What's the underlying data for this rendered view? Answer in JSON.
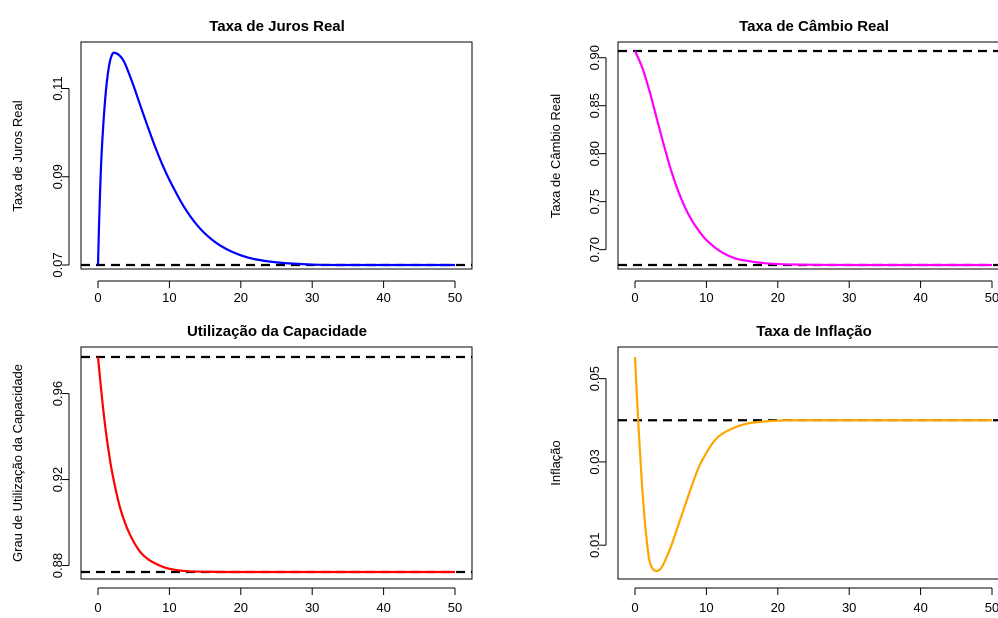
{
  "chart_data": [
    {
      "id": "juros",
      "type": "line",
      "title": "Taxa de Juros Real",
      "xlabel": "",
      "ylabel": "Taxa de Juros Real",
      "xlim": [
        0,
        50
      ],
      "ylim": [
        0.07,
        0.1185
      ],
      "xticks": [
        "0",
        "10",
        "20",
        "30",
        "40",
        "50"
      ],
      "yticks": [
        "0.07",
        "0.09",
        "0.11"
      ],
      "ytick_values": [
        0.07,
        0.09,
        0.11
      ],
      "xtick_values": [
        0,
        10,
        20,
        30,
        40,
        50
      ],
      "color": "#0000ff",
      "reference_lines": [
        0.07
      ],
      "series": [
        {
          "x": [
            0,
            0.2,
            0.5,
            1,
            1.5,
            2,
            2.5,
            3,
            3.5,
            4,
            5,
            6,
            7,
            8,
            9,
            10,
            12,
            14,
            16,
            18,
            20,
            22,
            25,
            30,
            35,
            40,
            45,
            50
          ],
          "values": [
            0.07,
            0.082,
            0.095,
            0.1075,
            0.1147,
            0.1178,
            0.118,
            0.1175,
            0.1165,
            0.1148,
            0.1105,
            0.1058,
            0.1012,
            0.0968,
            0.0928,
            0.0893,
            0.0833,
            0.0788,
            0.0757,
            0.0736,
            0.0722,
            0.0713,
            0.0706,
            0.0701,
            0.07,
            0.07,
            0.07,
            0.07
          ]
        }
      ]
    },
    {
      "id": "cambio",
      "type": "line",
      "title": "Taxa de Câmbio Real",
      "xlabel": "",
      "ylabel": "Taxa de Câmbio Real",
      "xlim": [
        0,
        50
      ],
      "ylim": [
        0.684,
        0.907
      ],
      "xticks": [
        "0",
        "10",
        "20",
        "30",
        "40",
        "50"
      ],
      "yticks": [
        "0.70",
        "0.75",
        "0.80",
        "0.85",
        "0.90"
      ],
      "ytick_values": [
        0.7,
        0.75,
        0.8,
        0.85,
        0.9
      ],
      "xtick_values": [
        0,
        10,
        20,
        30,
        40,
        50
      ],
      "color": "#ff00ff",
      "reference_lines": [
        0.907,
        0.684
      ],
      "series": [
        {
          "x": [
            0,
            1,
            2,
            3,
            4,
            5,
            6,
            7,
            8,
            9,
            10,
            12,
            14,
            16,
            18,
            20,
            22,
            25,
            30,
            35,
            40,
            45,
            50
          ],
          "values": [
            0.907,
            0.89,
            0.866,
            0.838,
            0.81,
            0.784,
            0.762,
            0.744,
            0.73,
            0.719,
            0.71,
            0.698,
            0.691,
            0.688,
            0.686,
            0.685,
            0.6845,
            0.6842,
            0.684,
            0.684,
            0.684,
            0.684,
            0.684
          ]
        }
      ]
    },
    {
      "id": "capacidade",
      "type": "line",
      "title": "Utilização da Capacidade",
      "xlabel": "",
      "ylabel": "Grau de Utilização da Capacidade",
      "xlim": [
        0,
        50
      ],
      "ylim": [
        0.877,
        0.977
      ],
      "xticks": [
        "0",
        "10",
        "20",
        "30",
        "40",
        "50"
      ],
      "yticks": [
        "0.88",
        "0.92",
        "0.96"
      ],
      "ytick_values": [
        0.88,
        0.92,
        0.96
      ],
      "xtick_values": [
        0,
        10,
        20,
        30,
        40,
        50
      ],
      "color": "#ff0000",
      "reference_lines": [
        0.977,
        0.877
      ],
      "series": [
        {
          "x": [
            0,
            0.5,
            1,
            1.5,
            2,
            3,
            4,
            5,
            6,
            7,
            8,
            9,
            10,
            12,
            14,
            16,
            18,
            20,
            25,
            30,
            35,
            40,
            45,
            50
          ],
          "values": [
            0.977,
            0.96,
            0.945,
            0.933,
            0.923,
            0.908,
            0.898,
            0.891,
            0.886,
            0.883,
            0.881,
            0.8795,
            0.8785,
            0.8775,
            0.8772,
            0.8771,
            0.877,
            0.877,
            0.877,
            0.877,
            0.877,
            0.877,
            0.877,
            0.877
          ]
        }
      ]
    },
    {
      "id": "inflacao",
      "type": "line",
      "title": "Taxa de Inflação",
      "xlabel": "",
      "ylabel": "Inflação",
      "xlim": [
        0,
        50
      ],
      "ylim": [
        0.0038,
        0.0552
      ],
      "xticks": [
        "0",
        "10",
        "20",
        "30",
        "40",
        "50"
      ],
      "yticks": [
        "0.01",
        "0.03",
        "0.05"
      ],
      "ytick_values": [
        0.01,
        0.03,
        0.05
      ],
      "xtick_values": [
        0,
        10,
        20,
        30,
        40,
        50
      ],
      "color": "#ffa500",
      "reference_lines": [
        0.04
      ],
      "series": [
        {
          "x": [
            0,
            0.5,
            1,
            1.5,
            2,
            2.5,
            3,
            3.5,
            4,
            5,
            6,
            7,
            8,
            9,
            10,
            11,
            12,
            14,
            16,
            18,
            20,
            22,
            25,
            30,
            35,
            40,
            45,
            50
          ],
          "values": [
            0.0552,
            0.038,
            0.024,
            0.0135,
            0.0065,
            0.0043,
            0.0038,
            0.0042,
            0.0055,
            0.0095,
            0.0145,
            0.0195,
            0.0245,
            0.029,
            0.0322,
            0.0348,
            0.0365,
            0.0383,
            0.0393,
            0.0397,
            0.0399,
            0.04,
            0.04,
            0.04,
            0.04,
            0.04,
            0.04,
            0.04
          ]
        }
      ]
    }
  ]
}
